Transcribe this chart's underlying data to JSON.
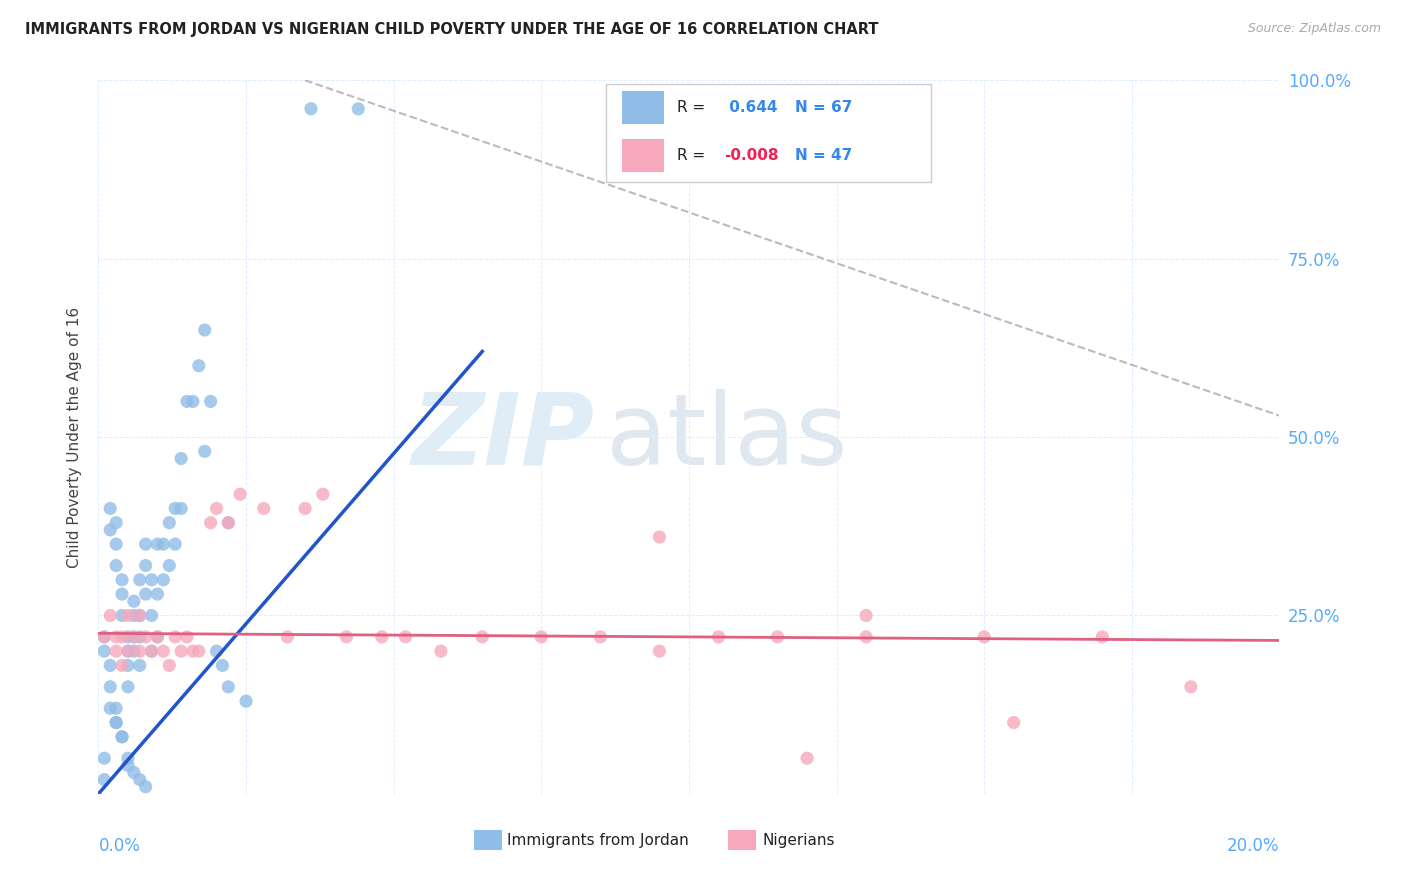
{
  "title": "IMMIGRANTS FROM JORDAN VS NIGERIAN CHILD POVERTY UNDER THE AGE OF 16 CORRELATION CHART",
  "source": "Source: ZipAtlas.com",
  "ylabel": "Child Poverty Under the Age of 16",
  "xlim": [
    0,
    0.2
  ],
  "ylim": [
    0,
    1.0
  ],
  "jordan_R": 0.644,
  "jordan_N": 67,
  "nigerian_R": -0.008,
  "nigerian_N": 47,
  "jordan_color": "#90bce8",
  "nigerian_color": "#f7a8bc",
  "jordan_trend_color": "#2255cc",
  "nigerian_trend_color": "#e06080",
  "watermark_zip": "ZIP",
  "watermark_atlas": "atlas",
  "right_ytick_labels": [
    "100.0%",
    "75.0%",
    "50.0%",
    "25.0%",
    ""
  ],
  "right_ytick_color": "#55aaff",
  "bottom_xlabel_color": "#55aaff",
  "grid_color": "#ddeeff",
  "jordan_x": [
    0.001,
    0.002,
    0.002,
    0.003,
    0.003,
    0.003,
    0.004,
    0.004,
    0.004,
    0.005,
    0.005,
    0.005,
    0.005,
    0.006,
    0.006,
    0.006,
    0.006,
    0.007,
    0.007,
    0.007,
    0.007,
    0.008,
    0.008,
    0.008,
    0.009,
    0.009,
    0.009,
    0.01,
    0.01,
    0.01,
    0.011,
    0.011,
    0.012,
    0.012,
    0.013,
    0.013,
    0.014,
    0.015,
    0.016,
    0.017,
    0.018,
    0.019,
    0.02,
    0.021,
    0.022,
    0.025,
    0.002,
    0.003,
    0.004,
    0.005,
    0.006,
    0.007,
    0.008,
    0.001,
    0.002,
    0.003,
    0.002,
    0.003,
    0.004,
    0.005,
    0.001,
    0.001,
    0.036,
    0.044,
    0.014,
    0.018,
    0.022
  ],
  "jordan_y": [
    0.2,
    0.37,
    0.4,
    0.35,
    0.38,
    0.32,
    0.3,
    0.28,
    0.25,
    0.22,
    0.2,
    0.18,
    0.15,
    0.2,
    0.22,
    0.25,
    0.27,
    0.3,
    0.22,
    0.25,
    0.18,
    0.28,
    0.32,
    0.35,
    0.3,
    0.25,
    0.2,
    0.35,
    0.28,
    0.22,
    0.35,
    0.3,
    0.38,
    0.32,
    0.4,
    0.35,
    0.4,
    0.55,
    0.55,
    0.6,
    0.65,
    0.55,
    0.2,
    0.18,
    0.15,
    0.13,
    0.12,
    0.1,
    0.08,
    0.05,
    0.03,
    0.02,
    0.01,
    0.22,
    0.15,
    0.1,
    0.18,
    0.12,
    0.08,
    0.04,
    0.02,
    0.05,
    0.96,
    0.96,
    0.47,
    0.48,
    0.38
  ],
  "nigerian_x": [
    0.001,
    0.002,
    0.003,
    0.003,
    0.004,
    0.004,
    0.005,
    0.005,
    0.006,
    0.007,
    0.007,
    0.008,
    0.009,
    0.01,
    0.011,
    0.012,
    0.013,
    0.014,
    0.015,
    0.016,
    0.017,
    0.019,
    0.02,
    0.022,
    0.024,
    0.028,
    0.032,
    0.035,
    0.038,
    0.042,
    0.048,
    0.052,
    0.058,
    0.065,
    0.075,
    0.085,
    0.095,
    0.105,
    0.115,
    0.13,
    0.15,
    0.17,
    0.185,
    0.095,
    0.13,
    0.12,
    0.155
  ],
  "nigerian_y": [
    0.22,
    0.25,
    0.2,
    0.22,
    0.18,
    0.22,
    0.2,
    0.25,
    0.22,
    0.2,
    0.25,
    0.22,
    0.2,
    0.22,
    0.2,
    0.18,
    0.22,
    0.2,
    0.22,
    0.2,
    0.2,
    0.38,
    0.4,
    0.38,
    0.42,
    0.4,
    0.22,
    0.4,
    0.42,
    0.22,
    0.22,
    0.22,
    0.2,
    0.22,
    0.22,
    0.22,
    0.2,
    0.22,
    0.22,
    0.22,
    0.22,
    0.22,
    0.15,
    0.36,
    0.25,
    0.05,
    0.1
  ]
}
